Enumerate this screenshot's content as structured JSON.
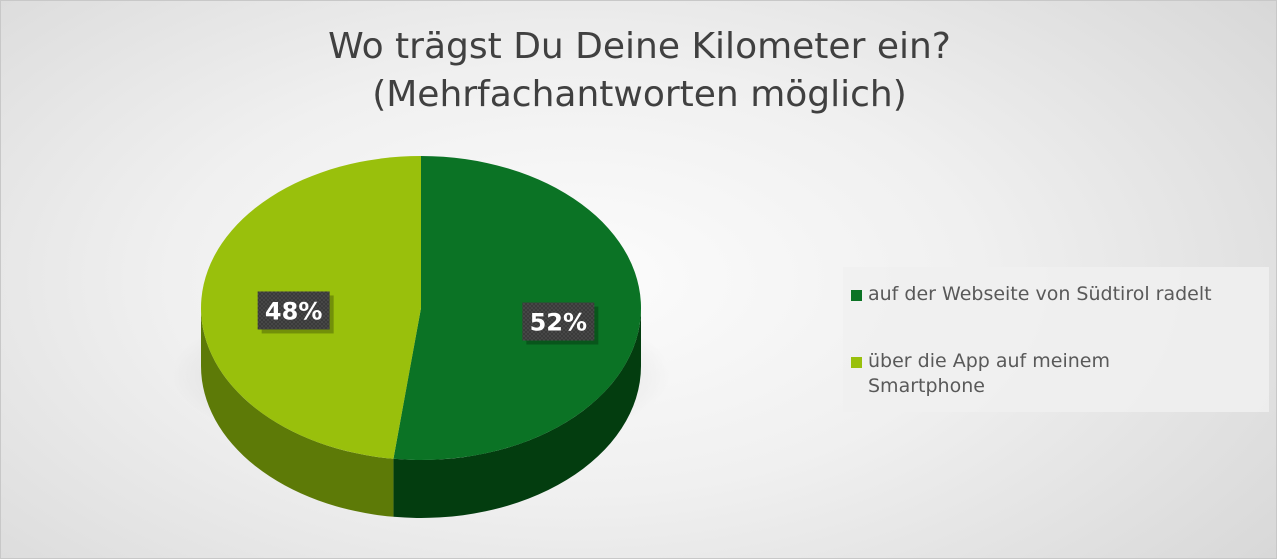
{
  "chart_data": {
    "type": "pie",
    "title_lines": [
      "Wo trägst Du Deine Kilometer ein?",
      "(Mehrfachantworten möglich)"
    ],
    "legend_position": "right",
    "slices": [
      {
        "label": "auf der Webseite von Südtirol radelt",
        "value": 52,
        "value_label": "52%",
        "color": "#0b7325",
        "side_color": "#033d0f"
      },
      {
        "label": "über die App auf meinem\nSmartphone",
        "value": 48,
        "value_label": "48%",
        "color": "#99c00c",
        "side_color": "#5d7a07"
      }
    ]
  }
}
